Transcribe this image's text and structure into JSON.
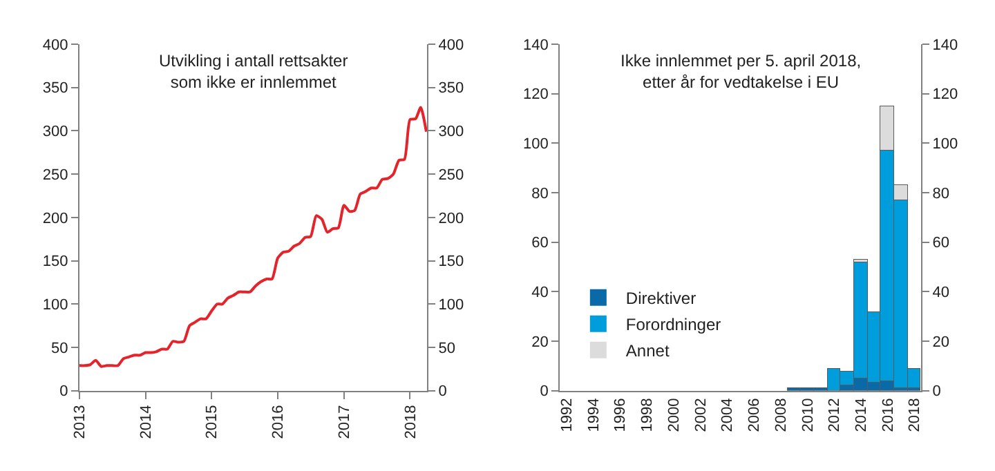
{
  "chart_data": [
    {
      "type": "line",
      "title": "Utvikling i antall rettsakter\nsom ikke er innlemmet",
      "x": [
        "2013-01",
        "2013-02",
        "2013-03",
        "2013-04",
        "2013-05",
        "2013-06",
        "2013-07",
        "2013-08",
        "2013-09",
        "2013-10",
        "2013-11",
        "2013-12",
        "2014-01",
        "2014-02",
        "2014-03",
        "2014-04",
        "2014-05",
        "2014-06",
        "2014-07",
        "2014-08",
        "2014-09",
        "2014-10",
        "2014-11",
        "2014-12",
        "2015-01",
        "2015-02",
        "2015-03",
        "2015-04",
        "2015-05",
        "2015-06",
        "2015-07",
        "2015-08",
        "2015-09",
        "2015-10",
        "2015-11",
        "2015-12",
        "2016-01",
        "2016-02",
        "2016-03",
        "2016-04",
        "2016-05",
        "2016-06",
        "2016-07",
        "2016-08",
        "2016-09",
        "2016-10",
        "2016-11",
        "2016-12",
        "2017-01",
        "2017-02",
        "2017-03",
        "2017-04",
        "2017-05",
        "2017-06",
        "2017-07",
        "2017-08",
        "2017-09",
        "2017-10",
        "2017-11",
        "2017-12",
        "2018-01",
        "2018-02",
        "2018-03",
        "2018-04"
      ],
      "series": [
        {
          "color": "#e3242b",
          "values": [
            29,
            29,
            30,
            35,
            28,
            29,
            29,
            29,
            37,
            39,
            41,
            41,
            44,
            44,
            45,
            48,
            48,
            57,
            56,
            57,
            75,
            79,
            83,
            83,
            92,
            100,
            100,
            107,
            110,
            114,
            114,
            114,
            121,
            126,
            129,
            129,
            153,
            160,
            161,
            167,
            170,
            177,
            178,
            202,
            198,
            183,
            187,
            188,
            214,
            207,
            208,
            227,
            230,
            234,
            234,
            244,
            245,
            250,
            266,
            267,
            313,
            314,
            327,
            299
          ]
        }
      ],
      "xlim": [
        "2013-01-01",
        "2018-04-05"
      ],
      "xticks": [
        {
          "value": "2013-01-01",
          "label": "2013"
        },
        {
          "value": "2014-01-01",
          "label": "2014"
        },
        {
          "value": "2015-01-01",
          "label": "2015"
        },
        {
          "value": "2016-01-01",
          "label": "2016"
        },
        {
          "value": "2017-01-01",
          "label": "2017"
        },
        {
          "value": "2018-01-01",
          "label": "2018"
        }
      ],
      "ylim": [
        0,
        400
      ],
      "yticks": [
        0,
        50,
        100,
        150,
        200,
        250,
        300,
        350,
        400
      ],
      "y2lim": [
        0,
        400
      ],
      "y2ticks": [
        0,
        50,
        100,
        150,
        200,
        250,
        300,
        350,
        400
      ],
      "legend": false,
      "marker": "none",
      "line_style": "solid"
    },
    {
      "type": "bar",
      "stacked": true,
      "title": "Ikke innlemmet per 5. april 2018,\netter år for vedtakelse i EU",
      "categories": [
        "1992",
        null,
        "1994",
        null,
        "1996",
        null,
        "1998",
        null,
        "2000",
        null,
        "2002",
        null,
        "2004",
        null,
        "2006",
        null,
        "2008",
        null,
        "2010",
        null,
        "2012",
        null,
        "2014",
        null,
        "2016",
        null,
        "2018"
      ],
      "series": [
        {
          "name": "Direktiver",
          "color": "#0a6aa8",
          "values": [
            0,
            0,
            0,
            0,
            0,
            0,
            0,
            0,
            0,
            0,
            0,
            0,
            0,
            0,
            0,
            0,
            0,
            1,
            1,
            1,
            0,
            2,
            5,
            3,
            4,
            1,
            1
          ]
        },
        {
          "name": "Forordninger",
          "color": "#009ddc",
          "values": [
            0,
            0,
            0,
            0,
            0,
            0,
            0,
            0,
            0,
            0,
            0,
            0,
            0,
            0,
            0,
            0,
            0,
            0,
            0,
            0,
            9,
            6,
            47,
            29,
            93,
            76,
            8
          ]
        },
        {
          "name": "Annet",
          "color": "#dcdcdc",
          "values": [
            0,
            0,
            0,
            0,
            0,
            0,
            0,
            0,
            0,
            0,
            0,
            0,
            0,
            0,
            0,
            0,
            0,
            0,
            0,
            0,
            0,
            0,
            1,
            0,
            18,
            6,
            0
          ]
        }
      ],
      "ylim": [
        0,
        140
      ],
      "yticks": [
        0,
        20,
        40,
        60,
        80,
        100,
        120,
        140
      ],
      "y2lim": [
        0,
        140
      ],
      "y2ticks": [
        0,
        20,
        40,
        60,
        80,
        100,
        120,
        140
      ],
      "legend": "bottom left"
    }
  ]
}
